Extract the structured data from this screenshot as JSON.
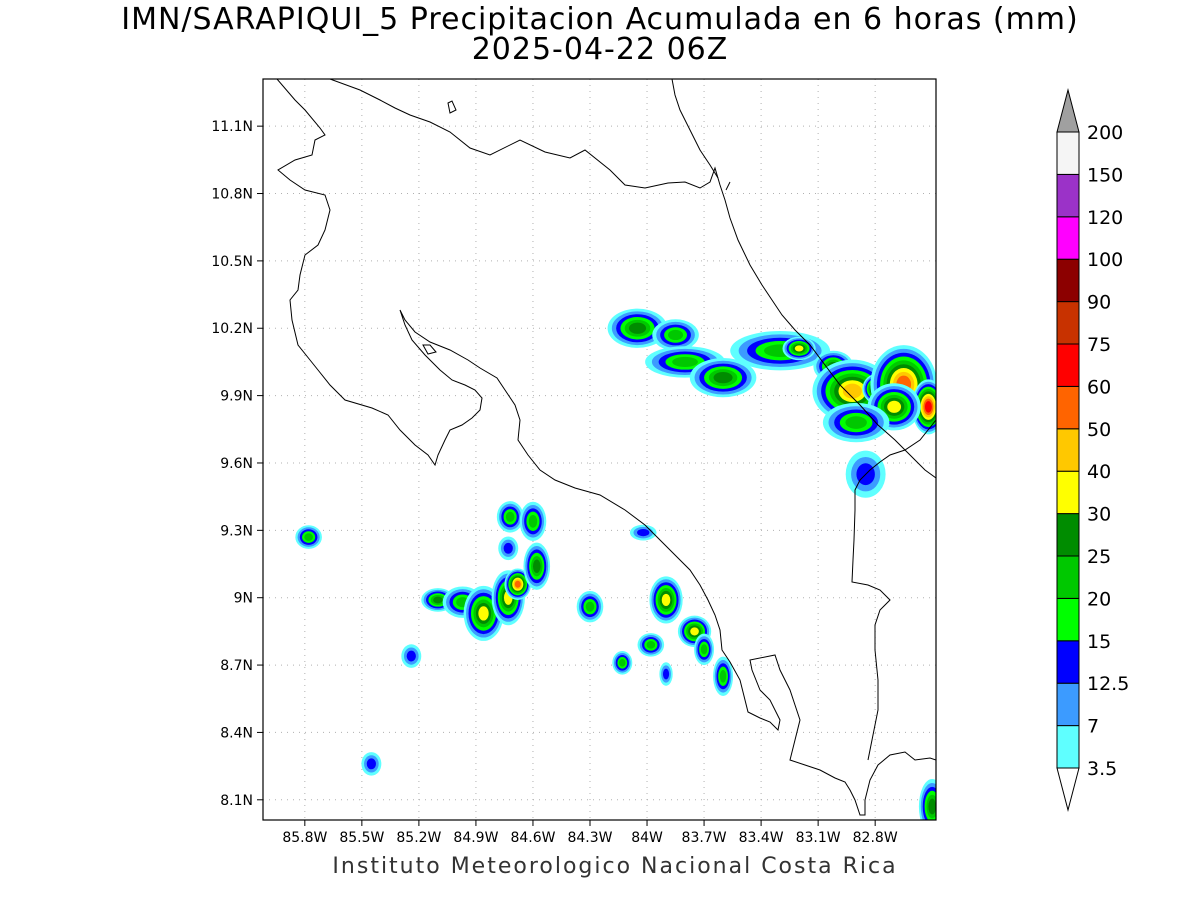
{
  "title": {
    "line1": "IMN/SARAPIQUI_5 Precipitacion Acumulada en 6 horas (mm)",
    "line2": "2025-04-22 06Z"
  },
  "footer": {
    "credit": "Instituto Meteorologico Nacional Costa Rica"
  },
  "axes": {
    "lon_range": [
      -86.02,
      -82.48
    ],
    "lat_range": [
      8.01,
      11.31
    ],
    "x_ticks": [
      "85.8W",
      "85.5W",
      "85.2W",
      "84.9W",
      "84.6W",
      "84.3W",
      "84W",
      "83.7W",
      "83.4W",
      "83.1W",
      "82.8W"
    ],
    "x_tick_values": [
      -85.8,
      -85.5,
      -85.2,
      -84.9,
      -84.6,
      -84.3,
      -84.0,
      -83.7,
      -83.4,
      -83.1,
      -82.8
    ],
    "y_ticks": [
      "8.1N",
      "8.4N",
      "8.7N",
      "9N",
      "9.3N",
      "9.6N",
      "9.9N",
      "10.2N",
      "10.5N",
      "10.8N",
      "11.1N"
    ],
    "y_tick_values": [
      8.1,
      8.4,
      8.7,
      9.0,
      9.3,
      9.6,
      9.9,
      10.2,
      10.5,
      10.8,
      11.1
    ],
    "grid": "dotted"
  },
  "colorbar": {
    "levels": [
      "3.5",
      "7",
      "12.5",
      "15",
      "20",
      "25",
      "30",
      "40",
      "50",
      "60",
      "75",
      "90",
      "100",
      "120",
      "150",
      "200"
    ],
    "colors": [
      "#5fffff",
      "#3c9bff",
      "#0000ff",
      "#00ff00",
      "#00c800",
      "#008c00",
      "#ffff00",
      "#ffc800",
      "#ff6400",
      "#ff0000",
      "#c83200",
      "#8c0000",
      "#ff00ff",
      "#9b32c8",
      "#f5f5f5",
      "#a0a0a0"
    ]
  },
  "chart_data": {
    "type": "heatmap",
    "variable": "Precipitacion Acumulada en 6 horas (mm)",
    "time": "2025-04-22 06Z",
    "rain_cells": [
      {
        "lon": -84.05,
        "lat": 10.2,
        "rx": 0.09,
        "ry": 0.05,
        "level": 5
      },
      {
        "lon": -83.85,
        "lat": 10.17,
        "rx": 0.07,
        "ry": 0.04,
        "level": 4
      },
      {
        "lon": -83.8,
        "lat": 10.05,
        "rx": 0.12,
        "ry": 0.04,
        "level": 4
      },
      {
        "lon": -83.6,
        "lat": 9.98,
        "rx": 0.1,
        "ry": 0.05,
        "level": 5
      },
      {
        "lon": -83.3,
        "lat": 10.1,
        "rx": 0.15,
        "ry": 0.05,
        "level": 4
      },
      {
        "lon": -83.2,
        "lat": 10.11,
        "rx": 0.05,
        "ry": 0.03,
        "level": 6
      },
      {
        "lon": -83.02,
        "lat": 10.03,
        "rx": 0.06,
        "ry": 0.04,
        "level": 5
      },
      {
        "lon": -82.92,
        "lat": 9.92,
        "rx": 0.12,
        "ry": 0.08,
        "level": 7
      },
      {
        "lon": -82.78,
        "lat": 9.93,
        "rx": 0.05,
        "ry": 0.04,
        "level": 9
      },
      {
        "lon": -82.65,
        "lat": 9.95,
        "rx": 0.1,
        "ry": 0.1,
        "level": 8
      },
      {
        "lon": -82.52,
        "lat": 9.85,
        "rx": 0.05,
        "ry": 0.07,
        "level": 9
      },
      {
        "lon": -82.7,
        "lat": 9.85,
        "rx": 0.08,
        "ry": 0.06,
        "level": 6
      },
      {
        "lon": -82.9,
        "lat": 9.78,
        "rx": 0.1,
        "ry": 0.05,
        "level": 4
      },
      {
        "lon": -82.85,
        "lat": 9.55,
        "rx": 0.06,
        "ry": 0.06,
        "level": 2
      },
      {
        "lon": -85.78,
        "lat": 9.27,
        "rx": 0.04,
        "ry": 0.03,
        "level": 4
      },
      {
        "lon": -85.1,
        "lat": 8.99,
        "rx": 0.05,
        "ry": 0.03,
        "level": 5
      },
      {
        "lon": -84.97,
        "lat": 8.98,
        "rx": 0.06,
        "ry": 0.04,
        "level": 4
      },
      {
        "lon": -84.86,
        "lat": 8.93,
        "rx": 0.06,
        "ry": 0.07,
        "level": 6
      },
      {
        "lon": -84.73,
        "lat": 9.0,
        "rx": 0.05,
        "ry": 0.07,
        "level": 6
      },
      {
        "lon": -84.68,
        "lat": 9.06,
        "rx": 0.04,
        "ry": 0.04,
        "level": 8
      },
      {
        "lon": -84.58,
        "lat": 9.14,
        "rx": 0.04,
        "ry": 0.06,
        "level": 5
      },
      {
        "lon": -84.72,
        "lat": 9.36,
        "rx": 0.04,
        "ry": 0.04,
        "level": 4
      },
      {
        "lon": -84.6,
        "lat": 9.34,
        "rx": 0.04,
        "ry": 0.05,
        "level": 4
      },
      {
        "lon": -84.73,
        "lat": 9.22,
        "rx": 0.03,
        "ry": 0.03,
        "level": 2
      },
      {
        "lon": -84.3,
        "lat": 8.96,
        "rx": 0.04,
        "ry": 0.04,
        "level": 4
      },
      {
        "lon": -83.9,
        "lat": 8.99,
        "rx": 0.05,
        "ry": 0.06,
        "level": 6
      },
      {
        "lon": -83.75,
        "lat": 8.85,
        "rx": 0.05,
        "ry": 0.04,
        "level": 6
      },
      {
        "lon": -83.98,
        "lat": 8.79,
        "rx": 0.04,
        "ry": 0.03,
        "level": 4
      },
      {
        "lon": -83.7,
        "lat": 8.77,
        "rx": 0.03,
        "ry": 0.04,
        "level": 4
      },
      {
        "lon": -84.13,
        "lat": 8.71,
        "rx": 0.03,
        "ry": 0.03,
        "level": 4
      },
      {
        "lon": -83.9,
        "lat": 8.66,
        "rx": 0.02,
        "ry": 0.03,
        "level": 2
      },
      {
        "lon": -83.6,
        "lat": 8.65,
        "rx": 0.03,
        "ry": 0.05,
        "level": 4
      },
      {
        "lon": -84.02,
        "lat": 9.29,
        "rx": 0.04,
        "ry": 0.02,
        "level": 2
      },
      {
        "lon": -85.24,
        "lat": 8.74,
        "rx": 0.03,
        "ry": 0.03,
        "level": 2
      },
      {
        "lon": -85.45,
        "lat": 8.26,
        "rx": 0.03,
        "ry": 0.03,
        "level": 2
      },
      {
        "lon": -82.5,
        "lat": 8.07,
        "rx": 0.04,
        "ry": 0.07,
        "level": 5
      }
    ]
  }
}
